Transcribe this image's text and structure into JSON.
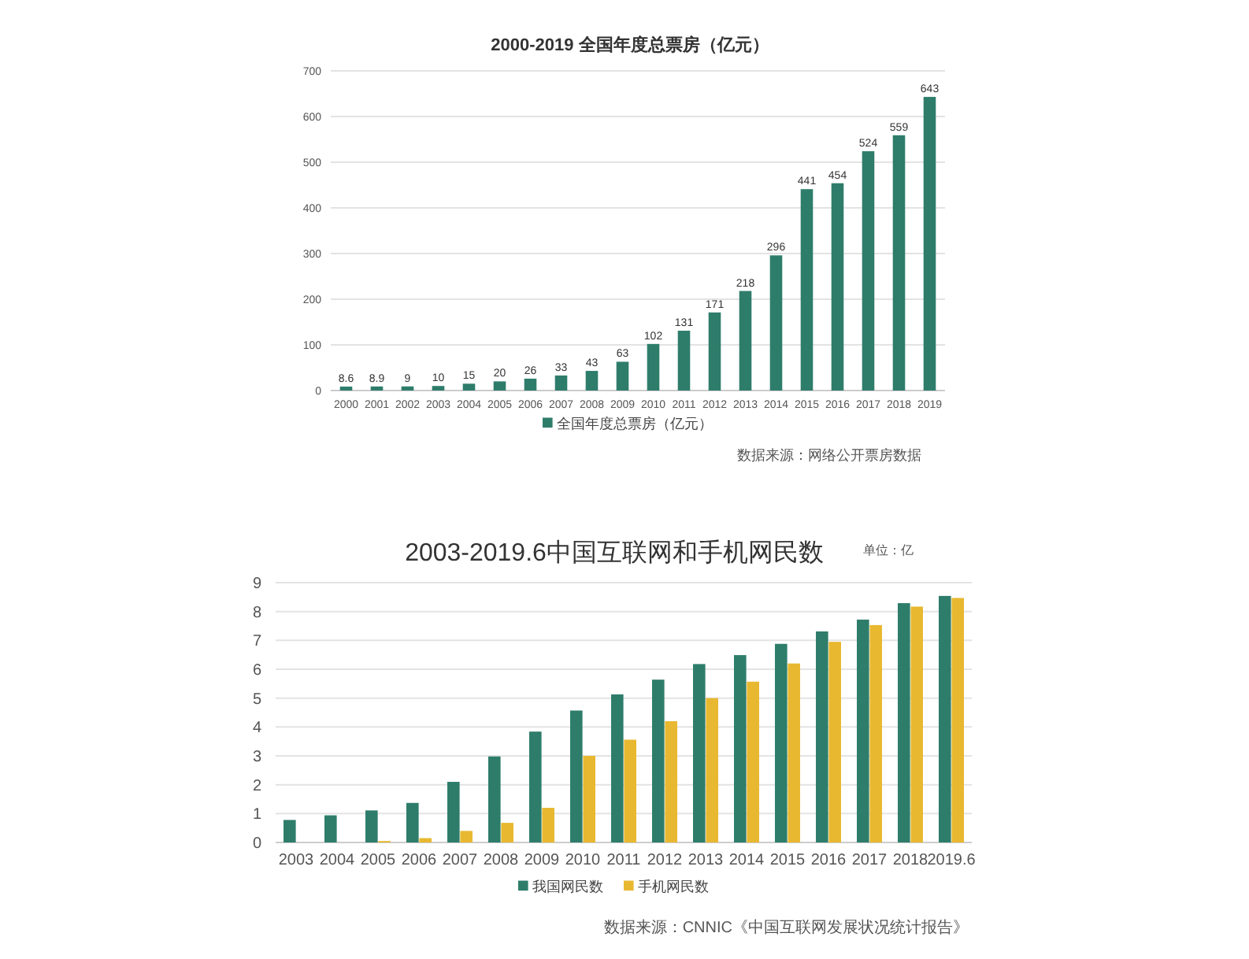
{
  "chart_data": [
    {
      "type": "bar",
      "title": "2000-2019 全国年度总票房（亿元）",
      "categories": [
        "2000",
        "2001",
        "2002",
        "2003",
        "2004",
        "2005",
        "2006",
        "2007",
        "2008",
        "2009",
        "2010",
        "2011",
        "2012",
        "2013",
        "2014",
        "2015",
        "2016",
        "2017",
        "2018",
        "2019"
      ],
      "series": [
        {
          "name": "全国年度总票房（亿元）",
          "color": "#2e7d6b",
          "values": [
            8.6,
            8.9,
            9,
            10,
            15,
            20,
            26,
            33,
            43,
            63,
            102,
            131,
            171,
            218,
            296,
            441,
            454,
            524,
            559,
            643
          ]
        }
      ],
      "ylim": [
        0,
        700
      ],
      "yticks": [
        0,
        100,
        200,
        300,
        400,
        500,
        600,
        700
      ],
      "grid": "y",
      "data_labels": true,
      "legend": "bottom",
      "annotations": [
        "数据来源：网络公开票房数据"
      ]
    },
    {
      "type": "bar",
      "title": "2003-2019.6中国互联网和手机网民数",
      "categories": [
        "2003",
        "2004",
        "2005",
        "2006",
        "2007",
        "2008",
        "2009",
        "2010",
        "2011",
        "2012",
        "2013",
        "2014",
        "2015",
        "2016",
        "2017",
        "2018",
        "2019.6"
      ],
      "series": [
        {
          "name": "我国网民数",
          "color": "#2e7d6b",
          "values": [
            0.78,
            0.94,
            1.11,
            1.37,
            2.1,
            2.98,
            3.84,
            4.57,
            5.13,
            5.64,
            6.18,
            6.49,
            6.88,
            7.31,
            7.72,
            8.29,
            8.54
          ]
        },
        {
          "name": "手机网民数",
          "color": "#e8b830",
          "values": [
            null,
            null,
            0.05,
            0.15,
            0.4,
            0.68,
            1.2,
            3.0,
            3.56,
            4.2,
            5.0,
            5.57,
            6.2,
            6.95,
            7.53,
            8.17,
            8.47
          ]
        }
      ],
      "ylim": [
        0,
        9
      ],
      "yticks": [
        0,
        1,
        2,
        3,
        4,
        5,
        6,
        7,
        8,
        9
      ],
      "grid": "y",
      "legend": "bottom",
      "annotations": [
        "单位：亿",
        "数据来源：CNNIC《中国互联网发展状况统计报告》"
      ]
    }
  ]
}
